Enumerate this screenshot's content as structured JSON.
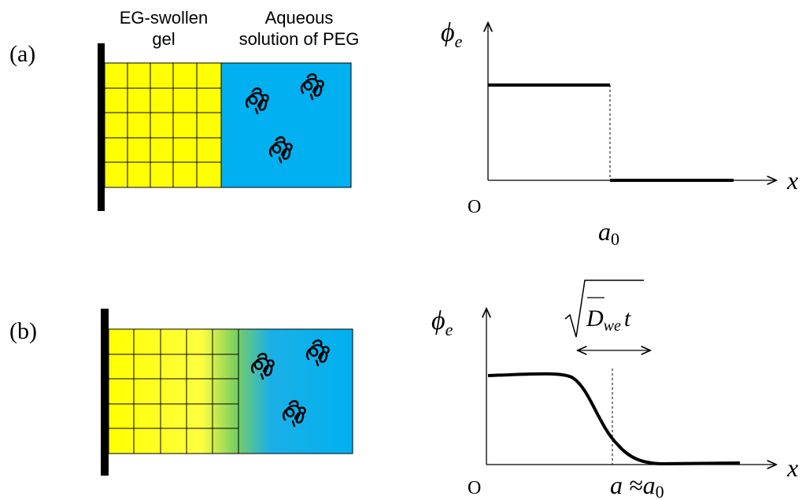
{
  "panel_a": {
    "label": "(a)",
    "gel_label": [
      "EG-swollen",
      "gel"
    ],
    "solution_label": [
      "Aqueous",
      "solution of PEG"
    ],
    "y_axis": {
      "symbol": "ϕ",
      "subscript": "e"
    },
    "x_axis": "x",
    "origin": "O",
    "boundary": {
      "symbol": "a",
      "subscript": "0"
    }
  },
  "panel_b": {
    "label": "(b)",
    "y_axis": {
      "symbol": "ϕ",
      "subscript": "e"
    },
    "x_axis": "x",
    "origin": "O",
    "boundary": {
      "symbol": "a ≈a",
      "subscript": "0"
    },
    "width": {
      "symbol": "D",
      "subscript": "we",
      "suffix": "t"
    }
  }
}
